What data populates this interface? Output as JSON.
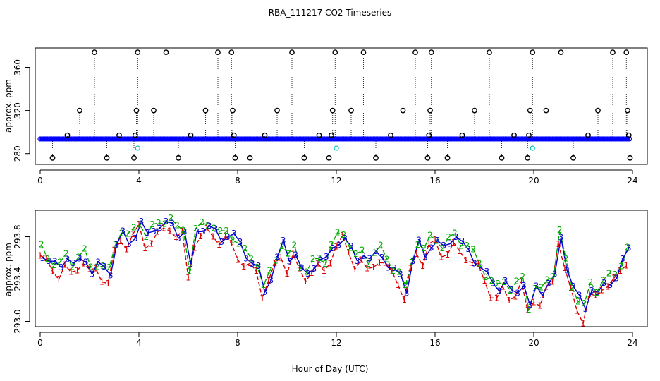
{
  "title": "RBA_111217  CO2 Timeseries",
  "xlabel": "Hour of Day (UTC)",
  "colors": {
    "points": "#0000ff",
    "points_alt": "#00bfbf",
    "outline": "#000000",
    "s1": "#dd0000",
    "s2": "#00aa00",
    "s3": "#0000cc"
  },
  "chart_data": [
    {
      "type": "scatter",
      "name": "raw-timeseries",
      "ylabel": "approx. ppm",
      "xlim": [
        -0.2,
        24.6
      ],
      "ylim": [
        270,
        378
      ],
      "xticks": [
        0,
        4,
        8,
        12,
        16,
        20,
        24
      ],
      "yticks": [
        280,
        320,
        360
      ],
      "baseline": 293.6,
      "point_interval_hours": 0.06,
      "outliers": [
        {
          "x": 0.5,
          "y": 276
        },
        {
          "x": 1.1,
          "y": 297
        },
        {
          "x": 1.6,
          "y": 320
        },
        {
          "x": 2.2,
          "y": 374
        },
        {
          "x": 2.7,
          "y": 276
        },
        {
          "x": 3.2,
          "y": 297
        },
        {
          "x": 3.8,
          "y": 276
        },
        {
          "x": 3.85,
          "y": 297
        },
        {
          "x": 3.9,
          "y": 320
        },
        {
          "x": 3.95,
          "y": 374
        },
        {
          "x": 4.6,
          "y": 320
        },
        {
          "x": 5.1,
          "y": 374
        },
        {
          "x": 5.6,
          "y": 276
        },
        {
          "x": 6.1,
          "y": 297
        },
        {
          "x": 6.7,
          "y": 320
        },
        {
          "x": 7.2,
          "y": 374
        },
        {
          "x": 7.75,
          "y": 374
        },
        {
          "x": 7.8,
          "y": 320
        },
        {
          "x": 7.85,
          "y": 297
        },
        {
          "x": 7.9,
          "y": 276
        },
        {
          "x": 8.5,
          "y": 276
        },
        {
          "x": 9.1,
          "y": 297
        },
        {
          "x": 9.6,
          "y": 320
        },
        {
          "x": 10.2,
          "y": 374
        },
        {
          "x": 10.7,
          "y": 276
        },
        {
          "x": 11.3,
          "y": 297
        },
        {
          "x": 11.7,
          "y": 276
        },
        {
          "x": 11.8,
          "y": 297
        },
        {
          "x": 11.85,
          "y": 320
        },
        {
          "x": 11.95,
          "y": 374
        },
        {
          "x": 12.6,
          "y": 320
        },
        {
          "x": 13.1,
          "y": 374
        },
        {
          "x": 13.6,
          "y": 276
        },
        {
          "x": 14.2,
          "y": 297
        },
        {
          "x": 14.7,
          "y": 320
        },
        {
          "x": 15.2,
          "y": 374
        },
        {
          "x": 15.7,
          "y": 276
        },
        {
          "x": 15.75,
          "y": 297
        },
        {
          "x": 15.8,
          "y": 320
        },
        {
          "x": 15.85,
          "y": 374
        },
        {
          "x": 16.5,
          "y": 276
        },
        {
          "x": 17.1,
          "y": 297
        },
        {
          "x": 17.6,
          "y": 320
        },
        {
          "x": 18.2,
          "y": 374
        },
        {
          "x": 18.7,
          "y": 276
        },
        {
          "x": 19.2,
          "y": 297
        },
        {
          "x": 19.75,
          "y": 276
        },
        {
          "x": 19.8,
          "y": 297
        },
        {
          "x": 19.85,
          "y": 320
        },
        {
          "x": 19.95,
          "y": 374
        },
        {
          "x": 20.5,
          "y": 320
        },
        {
          "x": 21.1,
          "y": 374
        },
        {
          "x": 21.6,
          "y": 276
        },
        {
          "x": 22.2,
          "y": 297
        },
        {
          "x": 22.6,
          "y": 320
        },
        {
          "x": 23.2,
          "y": 374
        },
        {
          "x": 23.75,
          "y": 374
        },
        {
          "x": 23.8,
          "y": 320
        },
        {
          "x": 23.85,
          "y": 297
        },
        {
          "x": 23.9,
          "y": 276
        }
      ],
      "cyan_points": [
        {
          "x": 3.95,
          "y": 285
        },
        {
          "x": 12.0,
          "y": 285
        },
        {
          "x": 19.95,
          "y": 285
        }
      ]
    },
    {
      "type": "line",
      "name": "sensor-averages",
      "ylabel": "approx. ppm",
      "xlim": [
        -0.2,
        24.6
      ],
      "ylim": [
        292.95,
        294.05
      ],
      "xticks": [
        0,
        4,
        8,
        12,
        16,
        20,
        24
      ],
      "yticks": [
        293.0,
        293.4,
        293.8
      ],
      "ytick_labels": [
        "293.0",
        "293.4",
        "293.8"
      ],
      "series": [
        {
          "name": "1",
          "label": "1",
          "color": "#dd0000",
          "offset": -0.06,
          "marker_every": 1
        },
        {
          "name": "2",
          "label": "2",
          "color": "#00aa00",
          "offset": 0.03,
          "marker_every": 1
        },
        {
          "name": "3",
          "label": "3",
          "color": "#0000cc",
          "offset": 0.0,
          "marker_every": 1
        }
      ],
      "x": [
        0.0,
        0.25,
        0.5,
        0.75,
        1.0,
        1.25,
        1.5,
        1.75,
        2.0,
        2.25,
        2.5,
        2.75,
        3.0,
        3.25,
        3.5,
        3.75,
        4.0,
        4.25,
        4.5,
        4.75,
        5.0,
        5.25,
        5.5,
        5.75,
        6.0,
        6.25,
        6.5,
        6.75,
        7.0,
        7.25,
        7.5,
        7.75,
        8.0,
        8.25,
        8.5,
        8.75,
        9.0,
        9.25,
        9.5,
        9.75,
        10.0,
        10.25,
        10.5,
        10.75,
        11.0,
        11.25,
        11.5,
        11.75,
        12.0,
        12.25,
        12.5,
        12.75,
        13.0,
        13.25,
        13.5,
        13.75,
        14.0,
        14.25,
        14.5,
        14.75,
        15.0,
        15.25,
        15.5,
        15.75,
        16.0,
        16.25,
        16.5,
        16.75,
        17.0,
        17.25,
        17.5,
        17.75,
        18.0,
        18.25,
        18.5,
        18.75,
        19.0,
        19.25,
        19.5,
        19.75,
        20.0,
        20.25,
        20.5,
        20.75,
        21.0,
        21.25,
        21.5,
        21.75,
        22.0,
        22.25,
        22.5,
        22.75,
        23.0,
        23.25,
        23.5,
        23.75
      ],
      "values": [
        293.65,
        293.6,
        293.55,
        293.52,
        293.6,
        293.5,
        293.55,
        293.6,
        293.5,
        293.55,
        293.5,
        293.45,
        293.7,
        293.8,
        293.75,
        293.85,
        293.95,
        293.8,
        293.85,
        293.88,
        293.9,
        293.92,
        293.85,
        293.88,
        293.5,
        293.82,
        293.86,
        293.88,
        293.85,
        293.8,
        293.85,
        293.8,
        293.7,
        293.6,
        293.55,
        293.5,
        293.3,
        293.45,
        293.6,
        293.7,
        293.55,
        293.65,
        293.5,
        293.45,
        293.55,
        293.6,
        293.55,
        293.65,
        293.75,
        293.8,
        293.7,
        293.6,
        293.65,
        293.55,
        293.6,
        293.62,
        293.55,
        293.5,
        293.45,
        293.3,
        293.55,
        293.7,
        293.6,
        293.75,
        293.78,
        293.7,
        293.75,
        293.8,
        293.7,
        293.65,
        293.6,
        293.55,
        293.45,
        293.35,
        293.3,
        293.35,
        293.25,
        293.3,
        293.4,
        293.15,
        293.3,
        293.25,
        293.35,
        293.4,
        293.8,
        293.55,
        293.35,
        293.2,
        293.1,
        293.3,
        293.25,
        293.35,
        293.4,
        293.45,
        293.55,
        293.65
      ]
    }
  ]
}
